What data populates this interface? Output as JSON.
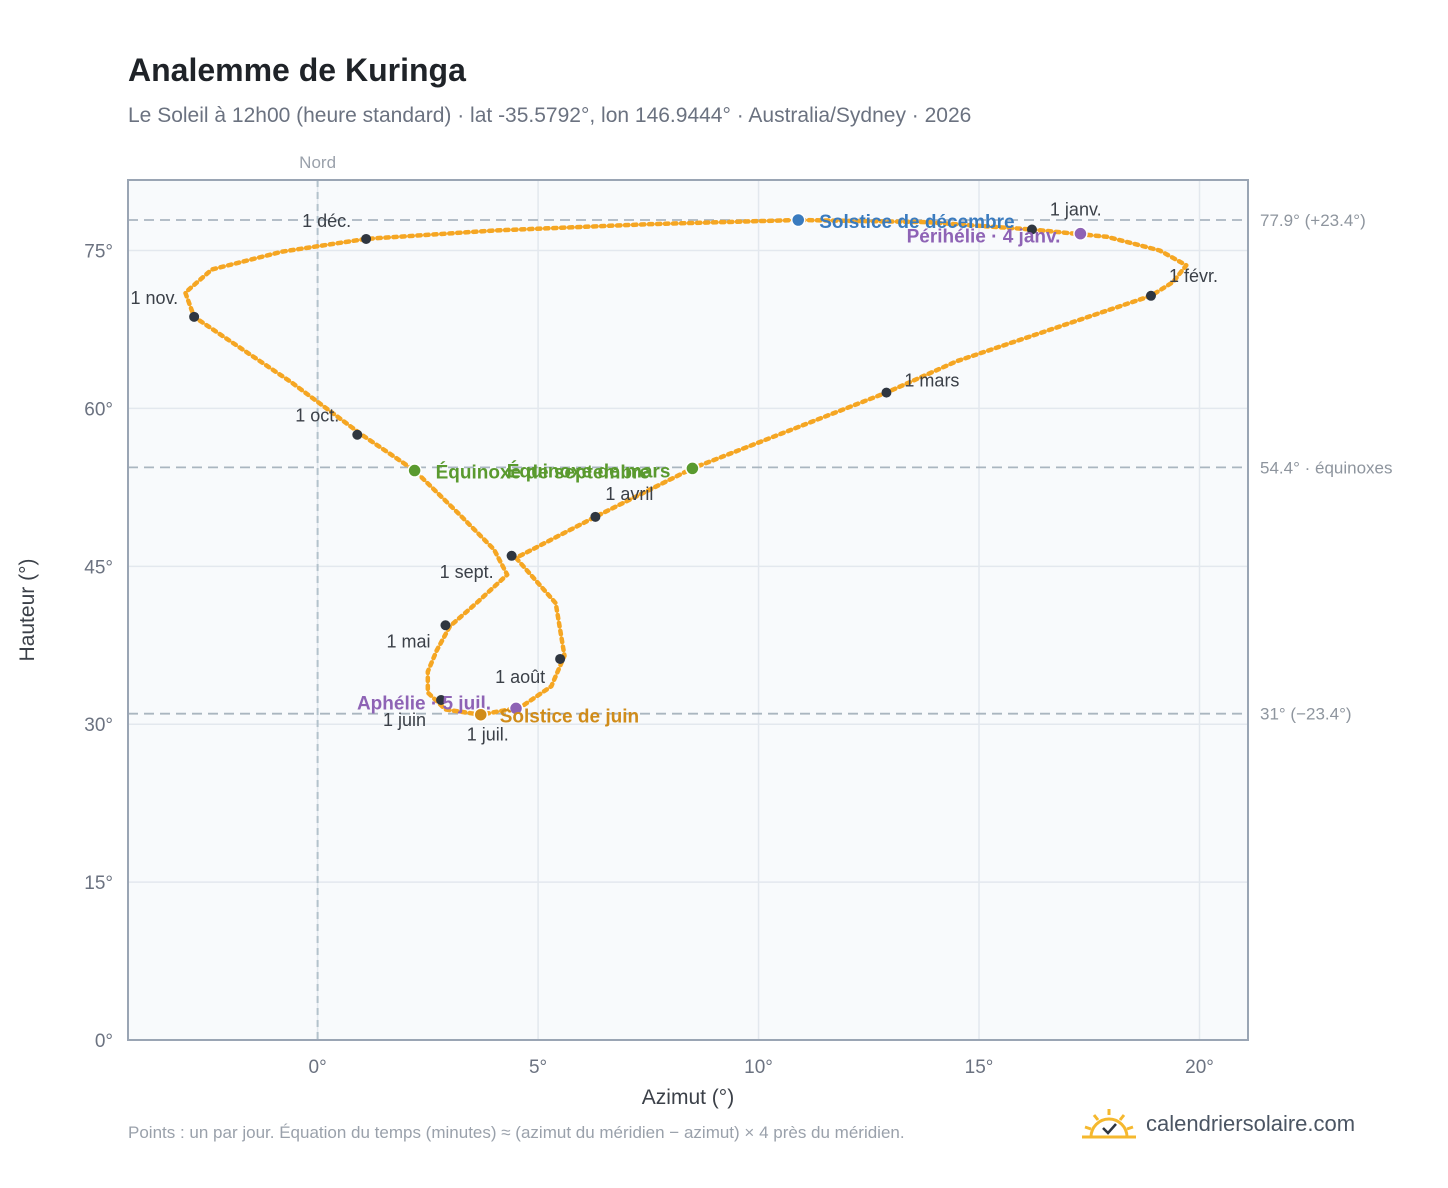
{
  "header": {
    "title": "Analemme de Kuringa",
    "subtitle": "Le Soleil à 12h00 (heure standard) · lat -35.5792°, lon 146.9444° · Australia/Sydney · 2026"
  },
  "footer": {
    "note": "Points : un par jour. Équation du temps (minutes) ≈ (azimut du méridien − azimut) × 4 près du méridien.",
    "brand": "calendriersolaire.com"
  },
  "colors": {
    "curve": "#f5a623",
    "month_dot": "#2f3640",
    "december_solstice": "#3a7bbf",
    "june_solstice": "#d08c1a",
    "equinox": "#5a9a2f",
    "apsis": "#8e63b5",
    "grid": "#e3e8ee",
    "plot_bg": "#f8fafc",
    "frame": "#9aa5b4"
  },
  "chart_data": {
    "type": "scatter",
    "xlabel": "Azimut (°)",
    "ylabel": "Hauteur (°)",
    "xlim": [
      -4.3,
      21.1
    ],
    "ylim": [
      0,
      81.7
    ],
    "xticks": [
      0,
      5,
      10,
      15,
      20
    ],
    "xtick_labels": [
      "0°",
      "5°",
      "10°",
      "15°",
      "20°"
    ],
    "yticks": [
      0,
      15,
      30,
      45,
      60,
      75
    ],
    "ytick_labels": [
      "0°",
      "15°",
      "30°",
      "45°",
      "60°",
      "75°"
    ],
    "grid": true,
    "meridian": {
      "x": 0,
      "label": "Nord"
    },
    "reference_lines": [
      {
        "y": 77.9,
        "label": "77.9° (+23.4°)"
      },
      {
        "y": 54.4,
        "label": "54.4° · équinoxes"
      },
      {
        "y": 31.0,
        "label": "31° (−23.4°)"
      }
    ],
    "path": [
      {
        "x": 16.2,
        "y": 77.0
      },
      {
        "x": 17.9,
        "y": 76.3
      },
      {
        "x": 19.1,
        "y": 75.0
      },
      {
        "x": 19.7,
        "y": 73.6
      },
      {
        "x": 19.4,
        "y": 72.0
      },
      {
        "x": 18.9,
        "y": 70.7
      },
      {
        "x": 16.7,
        "y": 67.6
      },
      {
        "x": 14.5,
        "y": 64.5
      },
      {
        "x": 12.9,
        "y": 61.5
      },
      {
        "x": 10.7,
        "y": 57.9
      },
      {
        "x": 8.5,
        "y": 54.3
      },
      {
        "x": 6.3,
        "y": 49.7
      },
      {
        "x": 4.5,
        "y": 45.8
      },
      {
        "x": 5.4,
        "y": 41.5
      },
      {
        "x": 5.6,
        "y": 36.5
      },
      {
        "x": 5.3,
        "y": 33.6
      },
      {
        "x": 4.6,
        "y": 31.6
      },
      {
        "x": 3.7,
        "y": 30.9
      },
      {
        "x": 2.9,
        "y": 31.4
      },
      {
        "x": 2.5,
        "y": 33.0
      },
      {
        "x": 2.5,
        "y": 35.0
      },
      {
        "x": 2.7,
        "y": 37.0
      },
      {
        "x": 3.0,
        "y": 39.3
      },
      {
        "x": 3.6,
        "y": 41.5
      },
      {
        "x": 4.3,
        "y": 44.2
      },
      {
        "x": 4.0,
        "y": 46.6
      },
      {
        "x": 3.2,
        "y": 50.0
      },
      {
        "x": 2.2,
        "y": 54.1
      },
      {
        "x": 1.0,
        "y": 57.5
      },
      {
        "x": -0.6,
        "y": 62.5
      },
      {
        "x": -2.8,
        "y": 68.7
      },
      {
        "x": -3.0,
        "y": 71.0
      },
      {
        "x": -2.4,
        "y": 73.2
      },
      {
        "x": -0.8,
        "y": 74.9
      },
      {
        "x": 1.1,
        "y": 76.1
      },
      {
        "x": 4.0,
        "y": 76.9
      },
      {
        "x": 7.5,
        "y": 77.5
      },
      {
        "x": 10.9,
        "y": 77.9
      },
      {
        "x": 13.8,
        "y": 77.7
      },
      {
        "x": 16.2,
        "y": 77.0
      }
    ],
    "months": [
      {
        "label": "1 janv.",
        "x": 16.2,
        "y": 77.0
      },
      {
        "label": "1 févr.",
        "x": 18.9,
        "y": 70.7
      },
      {
        "label": "1 mars",
        "x": 12.9,
        "y": 61.5
      },
      {
        "label": "1 avril",
        "x": 6.3,
        "y": 49.7
      },
      {
        "label": "1 mai",
        "x": 2.9,
        "y": 39.4
      },
      {
        "label": "1 juin",
        "x": 2.8,
        "y": 32.3
      },
      {
        "label": "1 juil.",
        "x": 3.7,
        "y": 30.9
      },
      {
        "label": "1 août",
        "x": 5.5,
        "y": 36.2
      },
      {
        "label": "1 sept.",
        "x": 4.4,
        "y": 46.0
      },
      {
        "label": "1 oct.",
        "x": 0.9,
        "y": 57.5
      },
      {
        "label": "1 nov.",
        "x": -2.8,
        "y": 68.7
      },
      {
        "label": "1 déc.",
        "x": 1.1,
        "y": 76.1
      }
    ],
    "events": [
      {
        "label": "Solstice de décembre",
        "x": 10.9,
        "y": 77.9,
        "color_key": "december_solstice"
      },
      {
        "label": "Périhélie · 4 janv.",
        "x": 17.3,
        "y": 76.6,
        "color_key": "apsis"
      },
      {
        "label": "Équinoxe de mars",
        "x": 8.5,
        "y": 54.3,
        "color_key": "equinox"
      },
      {
        "label": "Équinoxe de septembre",
        "x": 2.2,
        "y": 54.1,
        "color_key": "equinox"
      },
      {
        "label": "Aphélie · 5 juil.",
        "x": 4.5,
        "y": 31.5,
        "color_key": "apsis"
      },
      {
        "label": "Solstice de juin",
        "x": 3.7,
        "y": 30.9,
        "color_key": "june_solstice"
      }
    ]
  }
}
